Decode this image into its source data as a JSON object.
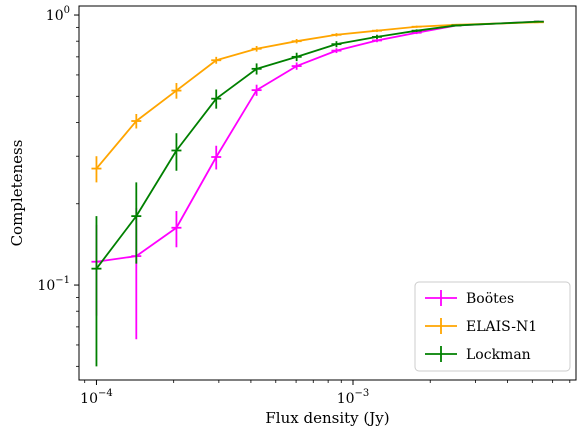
{
  "chart_data": {
    "type": "line",
    "title": "",
    "xlabel": "Flux density (Jy)",
    "ylabel": "Completeness",
    "xscale": "log",
    "yscale": "log",
    "xlim": [
      8.55e-05,
      0.0074
    ],
    "ylim": [
      0.0445,
      1.08
    ],
    "x_ticks": [
      {
        "value": 0.0001,
        "base": "10",
        "exp": "−4"
      },
      {
        "value": 0.001,
        "base": "10",
        "exp": "−3"
      }
    ],
    "y_ticks": [
      {
        "value": 0.1,
        "base": "10",
        "exp": "−1"
      },
      {
        "value": 1,
        "base": "10",
        "exp": "0"
      }
    ],
    "legend_position": "lower right",
    "series": [
      {
        "name": "Boötes",
        "color": "#ff00ff",
        "x": [
          0.0001,
          0.000143,
          0.000205,
          0.000293,
          0.000421,
          0.000603,
          0.000862,
          0.00124,
          0.00177,
          0.00253,
          0.0053
        ],
        "y": [
          0.122,
          0.128,
          0.163,
          0.298,
          0.527,
          0.647,
          0.738,
          0.805,
          0.86,
          0.915,
          0.945
        ],
        "yerr": [
          0.045,
          0.065,
          0.025,
          0.03,
          0.025,
          0.02,
          0.015,
          0.012,
          0.01,
          0.008,
          0.006
        ]
      },
      {
        "name": "ELAIS-N1",
        "color": "#ffa500",
        "x": [
          0.0001,
          0.000143,
          0.000205,
          0.000293,
          0.000421,
          0.000603,
          0.000862,
          0.00124,
          0.00177,
          0.00253,
          0.0053
        ],
        "y": [
          0.27,
          0.405,
          0.525,
          0.68,
          0.75,
          0.8,
          0.845,
          0.875,
          0.905,
          0.92,
          0.94
        ],
        "yerr": [
          0.03,
          0.025,
          0.035,
          0.02,
          0.018,
          0.015,
          0.012,
          0.01,
          0.008,
          0.006,
          0.005
        ]
      },
      {
        "name": "Lockman",
        "color": "#008000",
        "x": [
          0.0001,
          0.000143,
          0.000205,
          0.000293,
          0.000421,
          0.000603,
          0.000862,
          0.00124,
          0.00177,
          0.00253,
          0.0053
        ],
        "y": [
          0.115,
          0.18,
          0.315,
          0.49,
          0.632,
          0.7,
          0.78,
          0.83,
          0.875,
          0.915,
          0.945
        ],
        "yerr": [
          0.065,
          0.06,
          0.05,
          0.04,
          0.03,
          0.025,
          0.02,
          0.015,
          0.01,
          0.008,
          0.006
        ]
      }
    ]
  }
}
